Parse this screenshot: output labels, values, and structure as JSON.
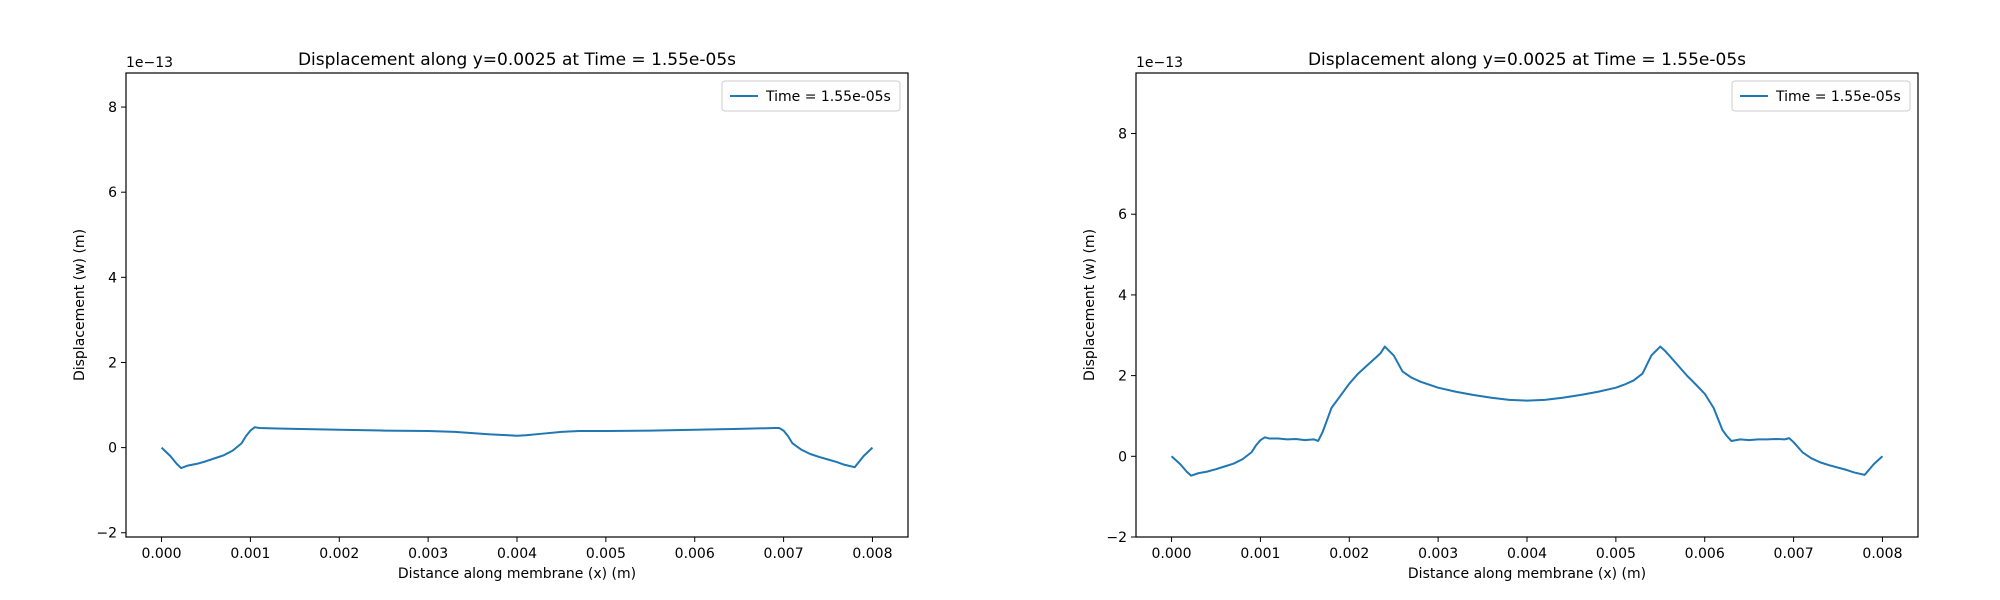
{
  "chart_data": [
    {
      "type": "line",
      "title": "Displacement along y=0.0025 at Time = 1.55e-05s",
      "xlabel": "Distance along membrane (x) (m)",
      "ylabel": "Displacement (w) (m)",
      "y_offset_label": "1e−13",
      "xlim": [
        -0.0004,
        0.0084
      ],
      "ylim": [
        -2.1,
        8.8
      ],
      "x_ticks": [
        0.0,
        0.001,
        0.002,
        0.003,
        0.004,
        0.005,
        0.006,
        0.007,
        0.008
      ],
      "x_tick_labels": [
        "0.000",
        "0.001",
        "0.002",
        "0.003",
        "0.004",
        "0.005",
        "0.006",
        "0.007",
        "0.008"
      ],
      "y_ticks": [
        -2,
        0,
        2,
        4,
        6,
        8
      ],
      "y_tick_labels": [
        "−2",
        "0",
        "2",
        "4",
        "6",
        "8"
      ],
      "grid": false,
      "legend_position": "top-right",
      "series": [
        {
          "name": "Time = 1.55e-05s",
          "color": "#1f77b4",
          "x": [
            0.0,
            0.0001,
            0.00017,
            0.00022,
            0.0003,
            0.0004,
            0.0005,
            0.0006,
            0.0007,
            0.0008,
            0.0009,
            0.00095,
            0.001,
            0.00105,
            0.0011,
            0.0013,
            0.0015,
            0.002,
            0.0025,
            0.003,
            0.0033,
            0.0035,
            0.0037,
            0.0039,
            0.004,
            0.0041,
            0.0043,
            0.0045,
            0.0047,
            0.005,
            0.0055,
            0.006,
            0.0065,
            0.0069,
            0.00695,
            0.007,
            0.00705,
            0.0071,
            0.0072,
            0.0073,
            0.0074,
            0.0075,
            0.0076,
            0.00768,
            0.0078,
            0.0079,
            0.008
          ],
          "y": [
            0.0,
            -0.2,
            -0.38,
            -0.48,
            -0.42,
            -0.38,
            -0.32,
            -0.25,
            -0.18,
            -0.07,
            0.1,
            0.27,
            0.4,
            0.48,
            0.46,
            0.45,
            0.44,
            0.42,
            0.4,
            0.39,
            0.37,
            0.34,
            0.31,
            0.29,
            0.28,
            0.29,
            0.33,
            0.37,
            0.39,
            0.39,
            0.4,
            0.42,
            0.44,
            0.46,
            0.46,
            0.4,
            0.27,
            0.1,
            -0.05,
            -0.15,
            -0.22,
            -0.28,
            -0.34,
            -0.4,
            -0.46,
            -0.2,
            0.0
          ]
        }
      ]
    },
    {
      "type": "line",
      "title": "Displacement along y=0.0025 at Time = 1.55e-05s",
      "xlabel": "Distance along membrane (x) (m)",
      "ylabel": "Displacement (w) (m)",
      "y_offset_label": "1e−13",
      "xlim": [
        -0.0004,
        0.0084
      ],
      "ylim": [
        -2.0,
        9.5
      ],
      "x_ticks": [
        0.0,
        0.001,
        0.002,
        0.003,
        0.004,
        0.005,
        0.006,
        0.007,
        0.008
      ],
      "x_tick_labels": [
        "0.000",
        "0.001",
        "0.002",
        "0.003",
        "0.004",
        "0.005",
        "0.006",
        "0.007",
        "0.008"
      ],
      "y_ticks": [
        -2,
        0,
        2,
        4,
        6,
        8
      ],
      "y_tick_labels": [
        "−2",
        "0",
        "2",
        "4",
        "6",
        "8"
      ],
      "grid": false,
      "legend_position": "top-right",
      "series": [
        {
          "name": "Time = 1.55e-05s",
          "color": "#1f77b4",
          "x": [
            0.0,
            0.0001,
            0.00017,
            0.00022,
            0.0003,
            0.0004,
            0.0005,
            0.0006,
            0.0007,
            0.0008,
            0.0009,
            0.00095,
            0.001,
            0.00105,
            0.0011,
            0.0012,
            0.0013,
            0.0014,
            0.0015,
            0.0016,
            0.00165,
            0.0017,
            0.00175,
            0.0018,
            0.0019,
            0.002,
            0.0021,
            0.0022,
            0.0023,
            0.00235,
            0.0024,
            0.0025,
            0.0026,
            0.0027,
            0.0028,
            0.003,
            0.0032,
            0.0034,
            0.0036,
            0.0038,
            0.004,
            0.0042,
            0.0044,
            0.0046,
            0.0048,
            0.005,
            0.0051,
            0.0052,
            0.0053,
            0.0054,
            0.0055,
            0.00555,
            0.0056,
            0.0057,
            0.0058,
            0.0059,
            0.006,
            0.0061,
            0.0062,
            0.00625,
            0.0063,
            0.0064,
            0.0065,
            0.0066,
            0.0067,
            0.0068,
            0.0069,
            0.00695,
            0.007,
            0.0071,
            0.0072,
            0.0073,
            0.0074,
            0.0075,
            0.0076,
            0.00768,
            0.0078,
            0.0079,
            0.008
          ],
          "y": [
            0.0,
            -0.2,
            -0.38,
            -0.48,
            -0.42,
            -0.38,
            -0.32,
            -0.25,
            -0.18,
            -0.07,
            0.1,
            0.27,
            0.4,
            0.47,
            0.44,
            0.44,
            0.42,
            0.43,
            0.4,
            0.42,
            0.38,
            0.6,
            0.9,
            1.2,
            1.5,
            1.8,
            2.05,
            2.25,
            2.45,
            2.55,
            2.72,
            2.5,
            2.1,
            1.95,
            1.85,
            1.7,
            1.6,
            1.52,
            1.45,
            1.4,
            1.38,
            1.4,
            1.45,
            1.52,
            1.6,
            1.7,
            1.78,
            1.88,
            2.05,
            2.5,
            2.72,
            2.62,
            2.5,
            2.25,
            2.0,
            1.78,
            1.55,
            1.2,
            0.65,
            0.5,
            0.38,
            0.42,
            0.4,
            0.42,
            0.42,
            0.43,
            0.42,
            0.45,
            0.35,
            0.1,
            -0.05,
            -0.15,
            -0.22,
            -0.28,
            -0.34,
            -0.4,
            -0.46,
            -0.2,
            0.0
          ]
        }
      ]
    }
  ]
}
